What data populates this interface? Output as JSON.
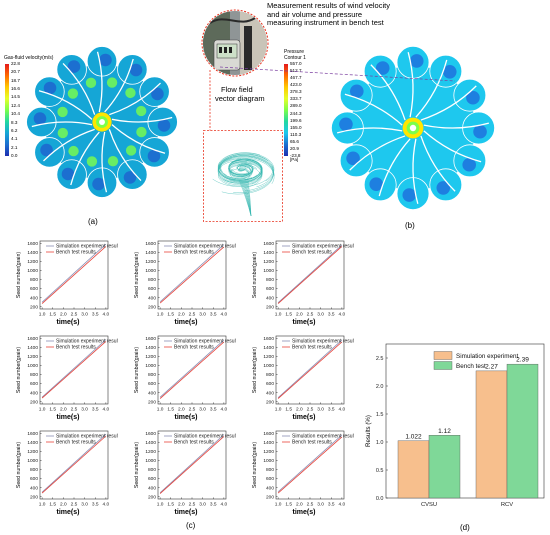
{
  "figure": {
    "panel_labels": [
      "(a)",
      "(b)",
      "(c)",
      "(d)"
    ]
  },
  "panel_a": {
    "colorbar_title": "Gas-fluid velocity(m/s)",
    "colorbar_ticks": [
      "22.8",
      "20.7",
      "18.7",
      "16.6",
      "14.5",
      "12.4",
      "10.4",
      "8.3",
      "6.2",
      "4.1",
      "2.1",
      "0.0"
    ],
    "colors": {
      "fan_bg": "#15a6d6",
      "blade": "#ffffff",
      "hub": "#ffe600"
    }
  },
  "inset": {
    "title": "Measurement results of wind velocity and air volume and pressure measuring instrument in bench test",
    "title_lines": [
      "Measurement results of wind velocity",
      "and air volume and pressure",
      "measuring instrument in bench test"
    ],
    "flow_label_lines": [
      "Flow field",
      "vector diagram"
    ],
    "colors": {
      "dashed_border": "#e8301c",
      "vector_lines": "#36b8b0"
    }
  },
  "panel_b": {
    "colorbar_title_lines": [
      "Pressure",
      "Contour 1"
    ],
    "colorbar_ticks": [
      "557.0",
      "512.7",
      "467.7",
      "423.0",
      "378.3",
      "333.7",
      "289.0",
      "244.3",
      "199.6",
      "155.0",
      "110.3",
      "65.6",
      "20.9",
      "-23.8"
    ],
    "unit": "[Pa]",
    "colors": {
      "fan_bg": "#1ec8ee",
      "blade": "#ffffff",
      "hub": "#ffe600"
    }
  },
  "panel_c": {
    "xlabel": "time(s)",
    "ylabel": "Seed number(grain)",
    "legend": [
      "Simulation experiment result",
      "Bench test results"
    ],
    "colors": {
      "simulation": "#8b8fb5",
      "bench": "#e8433a"
    }
  },
  "chart_data": [
    {
      "type": "line",
      "panel": "c-1",
      "x": [
        1.0,
        4.0
      ],
      "series": [
        {
          "name": "Simulation experiment result",
          "values": [
            300,
            1580
          ]
        },
        {
          "name": "Bench test results",
          "values": [
            270,
            1530
          ]
        }
      ],
      "xlabel": "time(s)",
      "ylabel": "Seed number(grain)",
      "xlim": [
        0.9,
        4.1
      ],
      "ylim": [
        150,
        1650
      ],
      "xticks": [
        "1.0",
        "1.5",
        "2.0",
        "2.5",
        "3.0",
        "3.5",
        "4.0"
      ],
      "yticks": [
        "200",
        "400",
        "600",
        "800",
        "1000",
        "1200",
        "1400",
        "1600"
      ]
    },
    {
      "type": "line",
      "panel": "c-2",
      "x": [
        1.0,
        4.0
      ],
      "series": [
        {
          "name": "Simulation experiment result",
          "values": [
            310,
            1570
          ]
        },
        {
          "name": "Bench test results",
          "values": [
            280,
            1520
          ]
        }
      ],
      "xlabel": "time(s)",
      "ylabel": "Seed number(grain)",
      "xlim": [
        0.9,
        4.1
      ],
      "ylim": [
        150,
        1650
      ],
      "xticks": [
        "1.0",
        "1.5",
        "2.0",
        "2.5",
        "3.0",
        "3.5",
        "4.0"
      ],
      "yticks": [
        "200",
        "400",
        "600",
        "800",
        "1000",
        "1200",
        "1400",
        "1600"
      ]
    },
    {
      "type": "line",
      "panel": "c-3",
      "x": [
        1.0,
        4.0
      ],
      "series": [
        {
          "name": "Simulation experiment result",
          "values": [
            290,
            1560
          ]
        },
        {
          "name": "Bench test results",
          "values": [
            270,
            1530
          ]
        }
      ],
      "xlabel": "time(s)",
      "ylabel": "Seed number(grain)",
      "xlim": [
        0.9,
        4.1
      ],
      "ylim": [
        150,
        1650
      ],
      "xticks": [
        "1.0",
        "1.5",
        "2.0",
        "2.5",
        "3.0",
        "3.5",
        "4.0"
      ],
      "yticks": [
        "200",
        "400",
        "600",
        "800",
        "1000",
        "1200",
        "1400",
        "1600"
      ]
    },
    {
      "type": "line",
      "panel": "c-4",
      "x": [
        1.0,
        4.0
      ],
      "series": [
        {
          "name": "Simulation experiment result",
          "values": [
            300,
            1570
          ]
        },
        {
          "name": "Bench test results",
          "values": [
            280,
            1530
          ]
        }
      ],
      "xlabel": "time(s)",
      "ylabel": "Seed number(grain)",
      "xlim": [
        0.9,
        4.1
      ],
      "ylim": [
        150,
        1650
      ],
      "xticks": [
        "1.0",
        "1.5",
        "2.0",
        "2.5",
        "3.0",
        "3.5",
        "4.0"
      ],
      "yticks": [
        "200",
        "400",
        "600",
        "800",
        "1000",
        "1200",
        "1400",
        "1600"
      ]
    },
    {
      "type": "line",
      "panel": "c-5",
      "x": [
        1.0,
        4.0
      ],
      "series": [
        {
          "name": "Simulation experiment result",
          "values": [
            300,
            1560
          ]
        },
        {
          "name": "Bench test results",
          "values": [
            270,
            1520
          ]
        }
      ],
      "xlabel": "time(s)",
      "ylabel": "Seed number(grain)",
      "xlim": [
        0.9,
        4.1
      ],
      "ylim": [
        150,
        1650
      ],
      "xticks": [
        "1.0",
        "1.5",
        "2.0",
        "2.5",
        "3.0",
        "3.5",
        "4.0"
      ],
      "yticks": [
        "200",
        "400",
        "600",
        "800",
        "1000",
        "1200",
        "1400",
        "1600"
      ]
    },
    {
      "type": "line",
      "panel": "c-6",
      "x": [
        1.0,
        4.0
      ],
      "series": [
        {
          "name": "Simulation experiment result",
          "values": [
            290,
            1560
          ]
        },
        {
          "name": "Bench test results",
          "values": [
            270,
            1520
          ]
        }
      ],
      "xlabel": "time(s)",
      "ylabel": "Seed number(grain)",
      "xlim": [
        0.9,
        4.1
      ],
      "ylim": [
        150,
        1650
      ],
      "xticks": [
        "1.0",
        "1.5",
        "2.0",
        "2.5",
        "3.0",
        "3.5",
        "4.0"
      ],
      "yticks": [
        "200",
        "400",
        "600",
        "800",
        "1000",
        "1200",
        "1400",
        "1600"
      ]
    },
    {
      "type": "line",
      "panel": "c-7",
      "x": [
        1.0,
        4.0
      ],
      "series": [
        {
          "name": "Simulation experiment result",
          "values": [
            300,
            1580
          ]
        },
        {
          "name": "Bench test results",
          "values": [
            280,
            1540
          ]
        }
      ],
      "xlabel": "time(s)",
      "ylabel": "Seed number(grain)",
      "xlim": [
        0.9,
        4.1
      ],
      "ylim": [
        150,
        1650
      ],
      "xticks": [
        "1.0",
        "1.5",
        "2.0",
        "2.5",
        "3.0",
        "3.5",
        "4.0"
      ],
      "yticks": [
        "200",
        "400",
        "600",
        "800",
        "1000",
        "1200",
        "1400",
        "1600"
      ]
    },
    {
      "type": "line",
      "panel": "c-8",
      "x": [
        1.0,
        4.0
      ],
      "series": [
        {
          "name": "Simulation experiment result",
          "values": [
            290,
            1570
          ]
        },
        {
          "name": "Bench test results",
          "values": [
            270,
            1530
          ]
        }
      ],
      "xlabel": "time(s)",
      "ylabel": "Seed number(grain)",
      "xlim": [
        0.9,
        4.1
      ],
      "ylim": [
        150,
        1650
      ],
      "xticks": [
        "1.0",
        "1.5",
        "2.0",
        "2.5",
        "3.0",
        "3.5",
        "4.0"
      ],
      "yticks": [
        "200",
        "400",
        "600",
        "800",
        "1000",
        "1200",
        "1400",
        "1600"
      ]
    },
    {
      "type": "line",
      "panel": "c-9",
      "x": [
        1.0,
        4.0
      ],
      "series": [
        {
          "name": "Simulation experiment result",
          "values": [
            310,
            1560
          ]
        },
        {
          "name": "Bench test results",
          "values": [
            280,
            1520
          ]
        }
      ],
      "xlabel": "time(s)",
      "ylabel": "Seed number(grain)",
      "xlim": [
        0.9,
        4.1
      ],
      "ylim": [
        150,
        1650
      ],
      "xticks": [
        "1.0",
        "1.5",
        "2.0",
        "2.5",
        "3.0",
        "3.5",
        "4.0"
      ],
      "yticks": [
        "200",
        "400",
        "600",
        "800",
        "1000",
        "1200",
        "1400",
        "1600"
      ]
    },
    {
      "type": "bar",
      "panel": "d",
      "categories": [
        "CVSU",
        "RCV"
      ],
      "series": [
        {
          "name": "Simulation experiment",
          "values": [
            1.022,
            2.27
          ]
        },
        {
          "name": "Bench test",
          "values": [
            1.12,
            2.39
          ]
        }
      ],
      "data_labels": [
        [
          "1.022",
          "2.27"
        ],
        [
          "1.12",
          "2.39"
        ]
      ],
      "ylabel": "Results (%)",
      "ylim": [
        0,
        2.75
      ],
      "yticks": [
        "0.0",
        "0.5",
        "1.0",
        "1.5",
        "2.0",
        "2.5"
      ],
      "colors": [
        "#f7bf8d",
        "#7fd898"
      ],
      "legend": "top-right"
    }
  ]
}
